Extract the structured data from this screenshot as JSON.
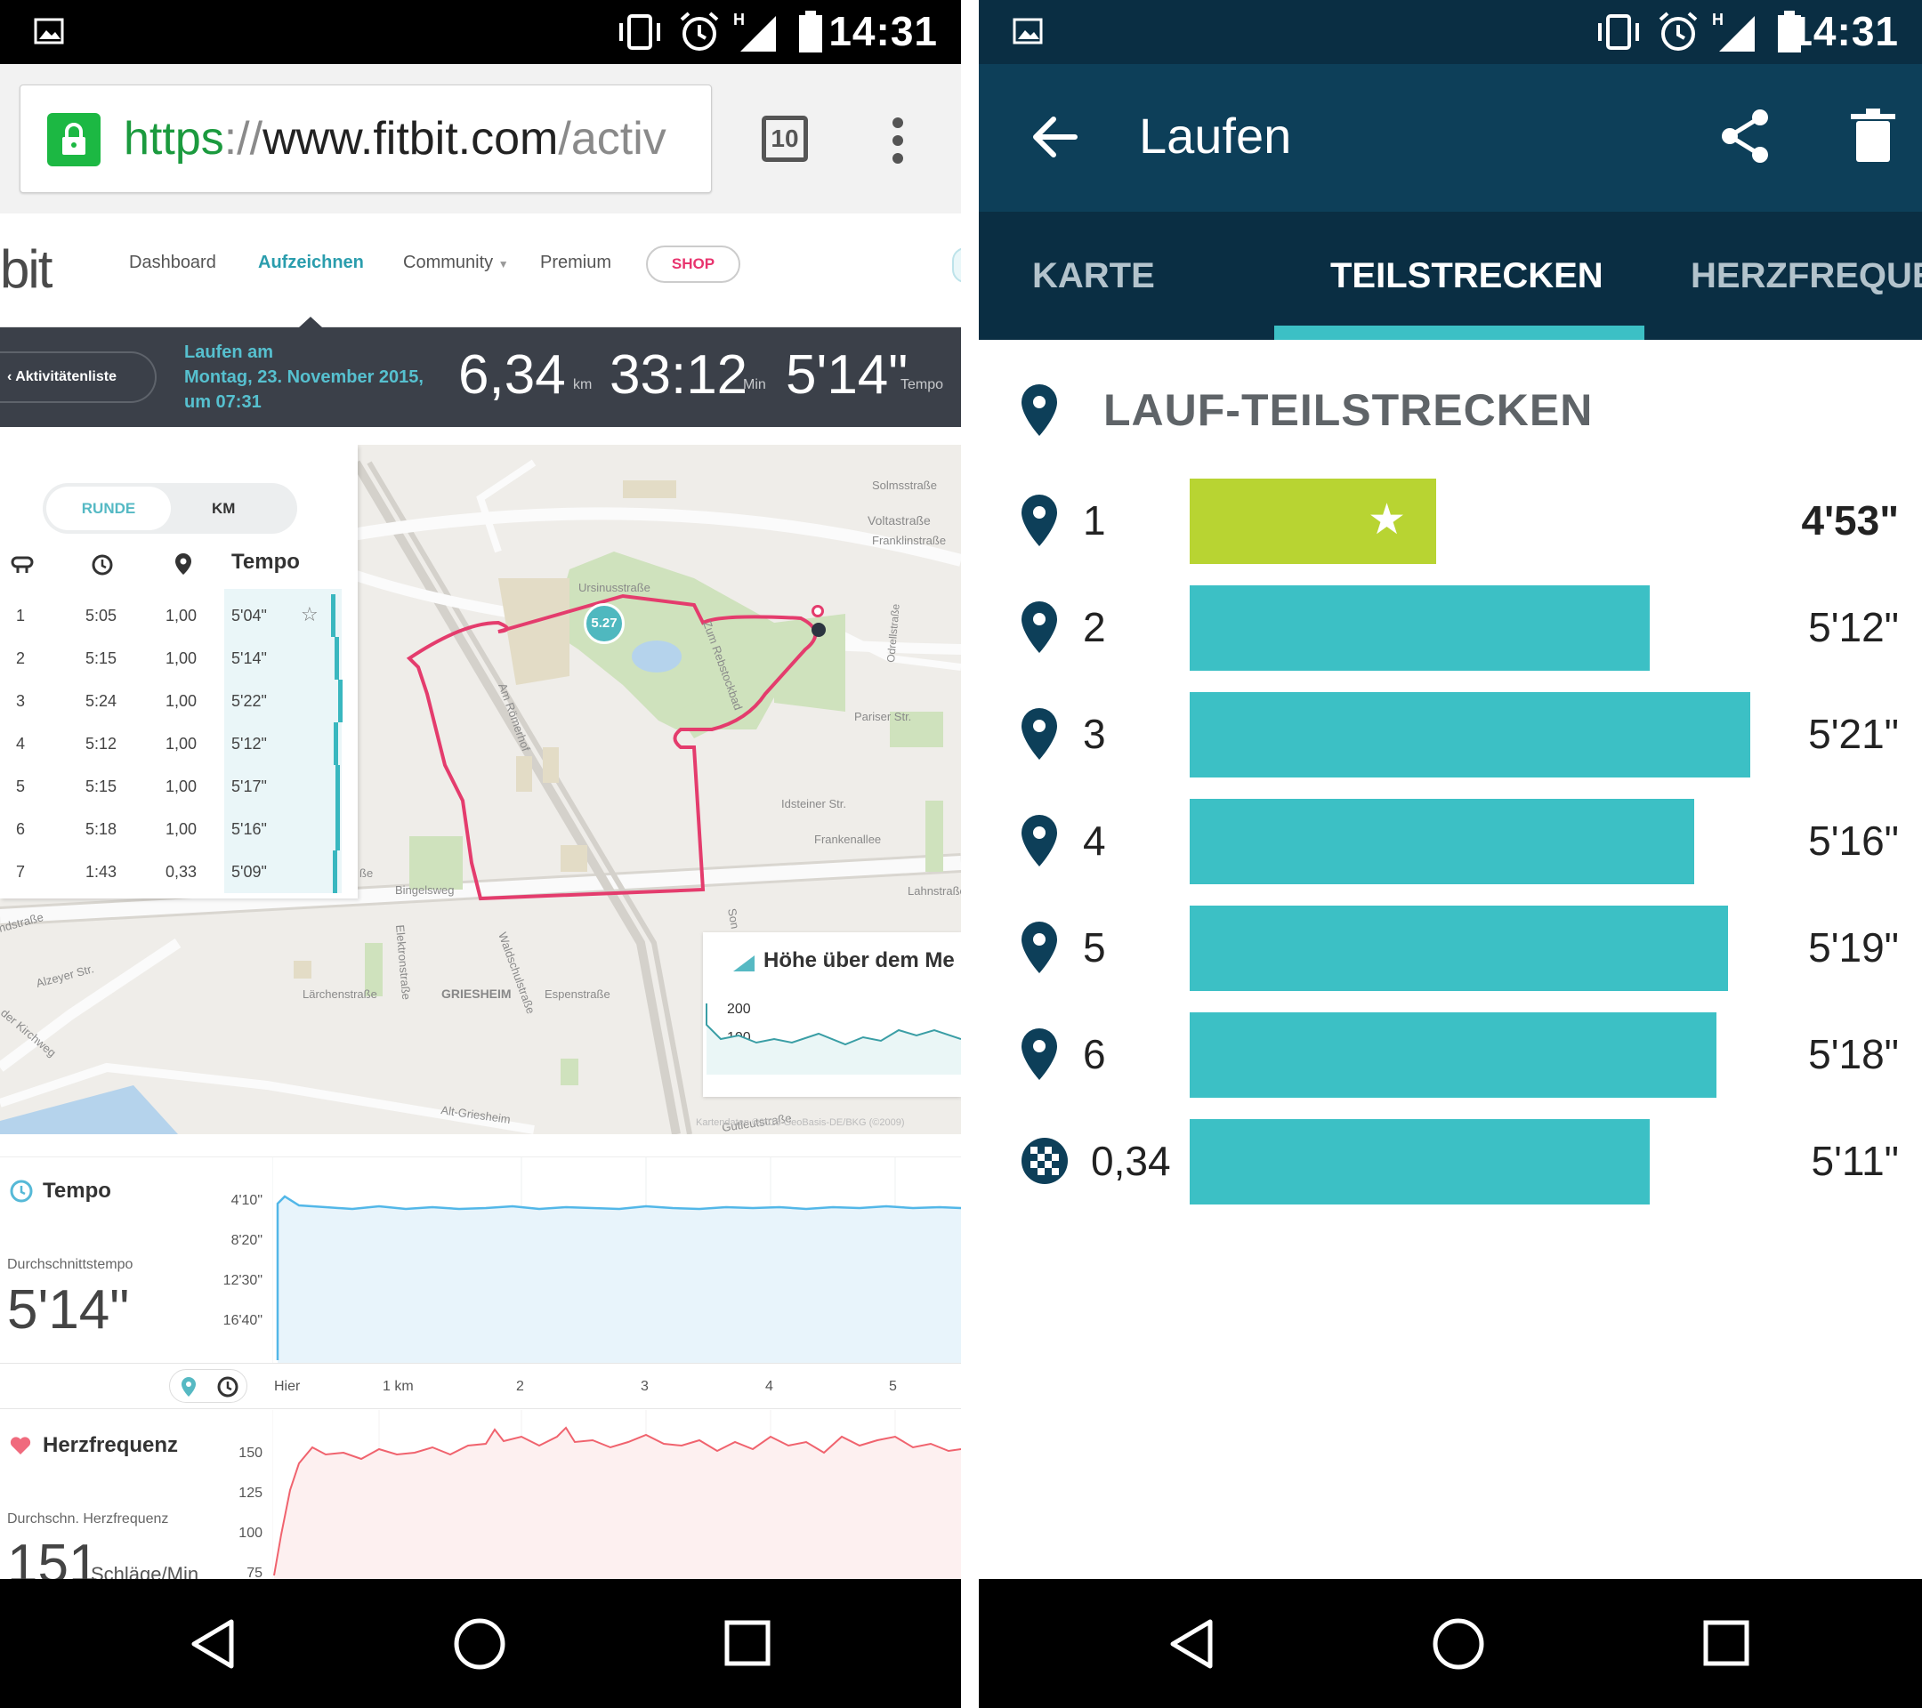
{
  "status_time": "14:31",
  "left": {
    "url": {
      "scheme": "https",
      "sep": "://",
      "host": "www.fitbit.com",
      "path": "/activ"
    },
    "tab_count": "10",
    "logo": "bit",
    "nav": {
      "dashboard": "Dashboard",
      "log": "Aufzeichnen",
      "community": "Community",
      "premium": "Premium",
      "shop": "SHOP"
    },
    "activity": {
      "back": "Aktivitätenliste",
      "title_line1": "Laufen am",
      "title_line2": "Montag, 23. November 2015,",
      "title_line3": "um 07:31",
      "distance": "6,34",
      "distance_unit": "km",
      "duration": "33:12",
      "duration_unit": "Min",
      "pace": "5'14\"",
      "pace_unit": "Tempo"
    },
    "splits_panel": {
      "toggle_on": "RUNDE",
      "toggle_off": "KM",
      "col_pace": "Tempo",
      "rows": [
        {
          "n": "1",
          "time": "5:05",
          "dist": "1,00",
          "pace": "5'04\"",
          "best": true,
          "bar": 0.58
        },
        {
          "n": "2",
          "time": "5:15",
          "dist": "1,00",
          "pace": "5'14\"",
          "bar": 0.78
        },
        {
          "n": "3",
          "time": "5:24",
          "dist": "1,00",
          "pace": "5'22\"",
          "bar": 1.0
        },
        {
          "n": "4",
          "time": "5:12",
          "dist": "1,00",
          "pace": "5'12\"",
          "bar": 0.72
        },
        {
          "n": "5",
          "time": "5:15",
          "dist": "1,00",
          "pace": "5'17\"",
          "bar": 0.86
        },
        {
          "n": "6",
          "time": "5:18",
          "dist": "1,00",
          "pace": "5'16\"",
          "bar": 0.82
        },
        {
          "n": "7",
          "time": "1:43",
          "dist": "0,33",
          "pace": "5'09\"",
          "bar": 0.66
        }
      ]
    },
    "map": {
      "marker": "5.27",
      "streets": [
        "Solmsstraße",
        "Voltastraße",
        "Franklinstraße",
        "Ursinusstraße",
        "Am Römerhof",
        "Zum Rebstockbad",
        "Odrellstraße",
        "Pariser Str.",
        "Idsteiner Str.",
        "Frankenallee",
        "Lahnstraße",
        "Bingelsweg",
        "Elektronstraße",
        "Waldschulstraße",
        "GRIESHEIM",
        "Espenstraße",
        "Lärchenstraße",
        "Alzeyer Str.",
        "Alt-Griesheim",
        "Gutleutstraße",
        "Kartendaten ©2015 GeoBasis-DE/BKG (©2009)",
        "ndstraße",
        "der Kirchweg",
        "ße",
        "Son"
      ],
      "elevation_title": "Höhe über dem Me",
      "elevation_ticks": [
        "200",
        "100"
      ]
    },
    "pace_chart": {
      "title": "Tempo",
      "sub": "Durchschnittstempo",
      "value": "5'14\"",
      "yticks": [
        "4'10\"",
        "8'20\"",
        "12'30\"",
        "16'40\""
      ],
      "xticks": [
        "Hier",
        "1 km",
        "2",
        "3",
        "4",
        "5"
      ]
    },
    "hr_chart": {
      "title": "Herzfrequenz",
      "sub": "Durchschn. Herzfrequenz",
      "value": "151",
      "value_unit": "Schläge/Min",
      "yticks": [
        "150",
        "125",
        "100",
        "75"
      ]
    }
  },
  "right": {
    "title": "Laufen",
    "tabs": [
      "KARTE",
      "TEILSTRECKEN",
      "HERZFREQUE"
    ],
    "section_title": "LAUF-TEILSTRECKEN",
    "colors": {
      "best": "#b8d432",
      "bar": "#3cc0c5",
      "header": "#0d3f59",
      "tabs": "#0a2e43"
    },
    "splits": [
      {
        "label": "1",
        "value": "4'53\"",
        "fraction": 0.44,
        "best": true
      },
      {
        "label": "2",
        "value": "5'12\"",
        "fraction": 0.82
      },
      {
        "label": "3",
        "value": "5'21\"",
        "fraction": 1.0
      },
      {
        "label": "4",
        "value": "5'16\"",
        "fraction": 0.9
      },
      {
        "label": "5",
        "value": "5'19\"",
        "fraction": 0.96
      },
      {
        "label": "6",
        "value": "5'18\"",
        "fraction": 0.94
      },
      {
        "label": "0,34",
        "value": "5'11\"",
        "fraction": 0.82,
        "finish": true
      }
    ]
  }
}
